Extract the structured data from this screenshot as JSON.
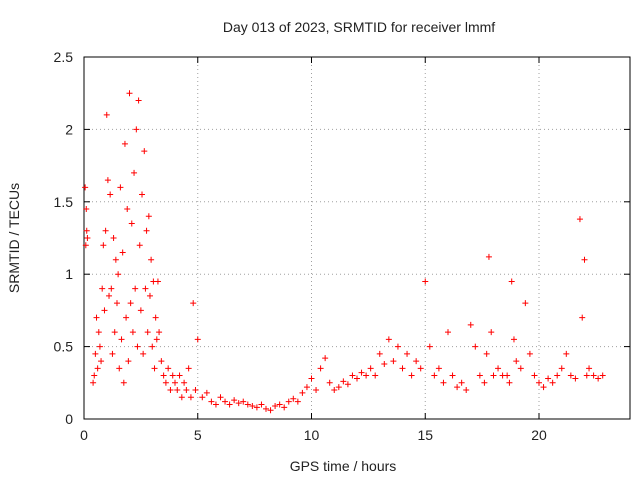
{
  "chart_data": {
    "type": "scatter",
    "title": "Day 013 of 2023, SRMTID for receiver lmmf",
    "xlabel": "GPS time / hours",
    "ylabel": "SRMTID / TECUs",
    "xlim": [
      0,
      24
    ],
    "ylim": [
      0,
      2.5
    ],
    "xticks": [
      0,
      5,
      10,
      15,
      20
    ],
    "xtick_labels": [
      "0",
      "5",
      "10",
      "15",
      "20"
    ],
    "yticks": [
      0,
      0.5,
      1,
      1.5,
      2,
      2.5
    ],
    "ytick_labels": [
      "0",
      "0.5",
      "1",
      "1.5",
      "2",
      "2.5"
    ],
    "grid": true,
    "marker": "+",
    "colors": {
      "series": "#ff0000",
      "grid": "#a0a0a0",
      "axis": "#000000"
    },
    "series": [
      {
        "name": "SRMTID",
        "x": [
          0.05,
          0.08,
          0.1,
          0.12,
          0.15,
          0.4,
          0.45,
          0.5,
          0.55,
          0.6,
          0.65,
          0.7,
          0.75,
          0.8,
          0.85,
          0.9,
          0.95,
          1.0,
          1.05,
          1.1,
          1.15,
          1.2,
          1.25,
          1.3,
          1.35,
          1.4,
          1.45,
          1.5,
          1.55,
          1.6,
          1.65,
          1.7,
          1.75,
          1.8,
          1.85,
          1.9,
          1.95,
          2.0,
          2.05,
          2.1,
          2.15,
          2.2,
          2.25,
          2.3,
          2.35,
          2.4,
          2.45,
          2.5,
          2.55,
          2.6,
          2.65,
          2.7,
          2.75,
          2.8,
          2.85,
          2.9,
          2.95,
          3.0,
          3.05,
          3.1,
          3.15,
          3.2,
          3.25,
          3.3,
          3.4,
          3.5,
          3.6,
          3.7,
          3.8,
          3.9,
          4.0,
          4.1,
          4.2,
          4.3,
          4.4,
          4.5,
          4.6,
          4.7,
          4.8,
          4.9,
          5.0,
          5.2,
          5.4,
          5.6,
          5.8,
          6.0,
          6.2,
          6.4,
          6.6,
          6.8,
          7.0,
          7.2,
          7.4,
          7.6,
          7.8,
          8.0,
          8.2,
          8.4,
          8.6,
          8.8,
          9.0,
          9.2,
          9.4,
          9.6,
          9.8,
          10.0,
          10.2,
          10.4,
          10.6,
          10.8,
          11.0,
          11.2,
          11.4,
          11.6,
          11.8,
          12.0,
          12.2,
          12.4,
          12.6,
          12.8,
          13.0,
          13.2,
          13.4,
          13.6,
          13.8,
          14.0,
          14.2,
          14.4,
          14.6,
          14.8,
          15.0,
          15.2,
          15.4,
          15.6,
          15.8,
          16.0,
          16.2,
          16.4,
          16.6,
          16.8,
          17.0,
          17.2,
          17.4,
          17.6,
          17.7,
          17.8,
          17.9,
          18.0,
          18.2,
          18.4,
          18.6,
          18.7,
          18.8,
          18.9,
          19.0,
          19.2,
          19.4,
          19.6,
          19.8,
          20.0,
          20.2,
          20.4,
          20.6,
          20.8,
          21.0,
          21.2,
          21.4,
          21.6,
          21.8,
          21.9,
          22.0,
          22.1,
          22.2,
          22.4,
          22.6,
          22.8
        ],
        "y": [
          1.6,
          1.2,
          1.45,
          1.3,
          1.25,
          0.25,
          0.3,
          0.45,
          0.7,
          0.35,
          0.6,
          0.5,
          0.4,
          0.9,
          1.2,
          0.75,
          1.3,
          2.1,
          1.65,
          0.85,
          1.55,
          0.9,
          0.45,
          1.25,
          0.6,
          1.1,
          0.8,
          1.0,
          0.35,
          1.6,
          0.55,
          1.15,
          0.25,
          1.9,
          0.7,
          1.45,
          0.4,
          2.25,
          0.8,
          1.35,
          0.6,
          1.7,
          0.9,
          2.0,
          0.5,
          2.2,
          1.2,
          0.75,
          1.55,
          0.45,
          1.85,
          0.9,
          1.3,
          0.6,
          1.4,
          0.85,
          1.1,
          0.5,
          0.95,
          0.35,
          0.7,
          0.55,
          0.95,
          0.6,
          0.4,
          0.3,
          0.25,
          0.35,
          0.2,
          0.3,
          0.25,
          0.2,
          0.3,
          0.15,
          0.25,
          0.2,
          0.35,
          0.15,
          0.8,
          0.2,
          0.55,
          0.15,
          0.18,
          0.12,
          0.1,
          0.15,
          0.12,
          0.1,
          0.13,
          0.11,
          0.12,
          0.1,
          0.09,
          0.08,
          0.1,
          0.07,
          0.06,
          0.09,
          0.1,
          0.08,
          0.12,
          0.14,
          0.12,
          0.18,
          0.22,
          0.28,
          0.2,
          0.35,
          0.42,
          0.25,
          0.2,
          0.22,
          0.26,
          0.24,
          0.3,
          0.28,
          0.32,
          0.3,
          0.35,
          0.3,
          0.45,
          0.38,
          0.55,
          0.4,
          0.5,
          0.35,
          0.45,
          0.3,
          0.4,
          0.35,
          0.95,
          0.5,
          0.3,
          0.35,
          0.25,
          0.6,
          0.3,
          0.22,
          0.25,
          0.2,
          0.65,
          0.5,
          0.3,
          0.25,
          0.45,
          1.12,
          0.6,
          0.3,
          0.35,
          0.3,
          0.3,
          0.25,
          0.95,
          0.55,
          0.4,
          0.35,
          0.8,
          0.45,
          0.3,
          0.25,
          0.22,
          0.28,
          0.25,
          0.3,
          0.35,
          0.45,
          0.3,
          0.28,
          1.38,
          0.7,
          1.1,
          0.3,
          0.35,
          0.3,
          0.28,
          0.3
        ]
      }
    ]
  }
}
